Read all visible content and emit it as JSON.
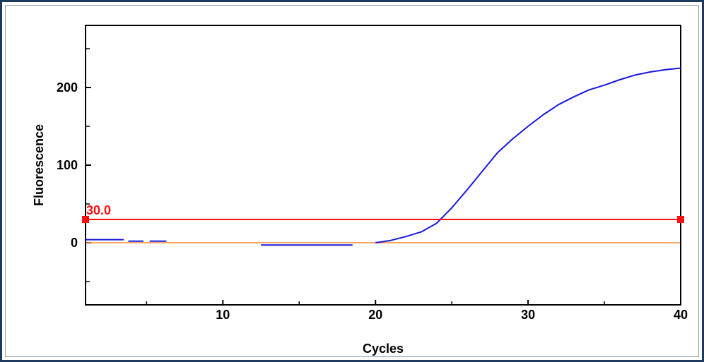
{
  "chart_data": {
    "type": "line",
    "title": "",
    "xlabel": "Cycles",
    "ylabel": "Fluorescence",
    "xlim": [
      1,
      40
    ],
    "ylim": [
      -80,
      280
    ],
    "grid": false,
    "x_ticks": [
      10,
      20,
      30,
      40
    ],
    "x_tick_labels": [
      "10",
      "20",
      "30",
      "40"
    ],
    "x_minor_ticks": [
      5,
      15,
      25,
      35
    ],
    "y_ticks": [
      0,
      100,
      200
    ],
    "y_tick_labels": [
      "0",
      "100",
      "200"
    ],
    "y_minor_ticks": [
      -50,
      50,
      150,
      250
    ],
    "threshold": {
      "value": 30.0,
      "label": "30.0",
      "color": "#ff1010"
    },
    "baseline": {
      "value": 0,
      "color": "#ff8c3a"
    },
    "series": [
      {
        "color": "#1818e0",
        "segments": [
          [
            [
              1,
              4
            ],
            [
              3.5,
              4
            ]
          ],
          [
            [
              3.8,
              2
            ],
            [
              4.8,
              2
            ]
          ],
          [
            [
              5.2,
              2
            ],
            [
              6.3,
              2
            ]
          ],
          [
            [
              12.5,
              -3
            ],
            [
              18.5,
              -3
            ]
          ],
          [
            [
              20,
              0
            ],
            [
              21,
              3
            ],
            [
              22,
              8
            ],
            [
              23,
              14
            ],
            [
              24,
              25
            ],
            [
              25,
              45
            ],
            [
              26,
              68
            ],
            [
              27,
              92
            ],
            [
              28,
              116
            ],
            [
              29,
              134
            ],
            [
              30,
              150
            ],
            [
              31,
              165
            ],
            [
              32,
              178
            ],
            [
              33,
              188
            ],
            [
              34,
              197
            ],
            [
              35,
              203
            ],
            [
              36,
              210
            ],
            [
              37,
              216
            ],
            [
              38,
              220
            ],
            [
              39,
              223
            ],
            [
              40,
              225
            ]
          ]
        ]
      }
    ]
  }
}
